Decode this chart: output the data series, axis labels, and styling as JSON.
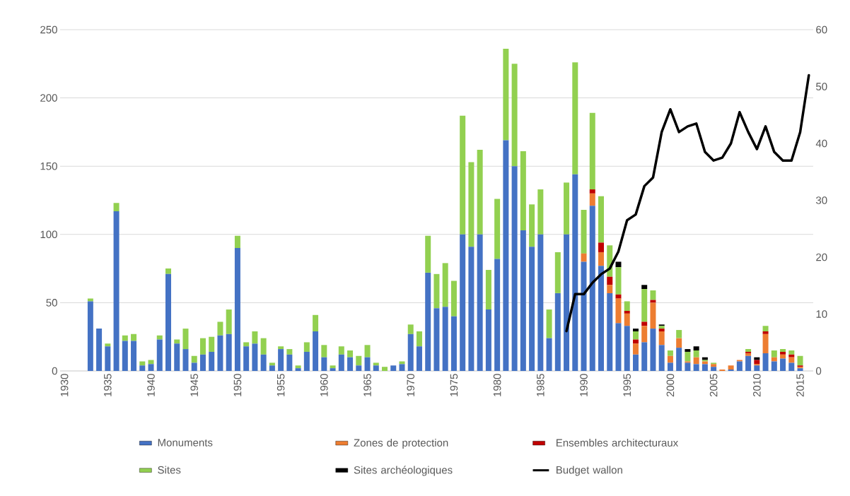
{
  "chart_data": {
    "type": "bar",
    "stacked": true,
    "grid": "y",
    "legend": "bottom",
    "x": [
      1933,
      1934,
      1935,
      1936,
      1937,
      1938,
      1939,
      1940,
      1941,
      1942,
      1943,
      1944,
      1945,
      1946,
      1947,
      1948,
      1949,
      1950,
      1951,
      1952,
      1953,
      1954,
      1955,
      1956,
      1957,
      1958,
      1959,
      1960,
      1961,
      1962,
      1963,
      1964,
      1965,
      1966,
      1967,
      1968,
      1969,
      1970,
      1971,
      1972,
      1973,
      1974,
      1975,
      1976,
      1977,
      1978,
      1979,
      1980,
      1981,
      1982,
      1983,
      1984,
      1985,
      1986,
      1987,
      1988,
      1989,
      1990,
      1991,
      1992,
      1993,
      1994,
      1995,
      1996,
      1997,
      1998,
      1999,
      2000,
      2001,
      2002,
      2003,
      2004,
      2005,
      2006,
      2007,
      2008,
      2009,
      2010,
      2011,
      2012,
      2013,
      2014,
      2015
    ],
    "xlim": [
      1929.5,
      2016.5
    ],
    "xticks": [
      1930,
      1935,
      1940,
      1945,
      1950,
      1955,
      1960,
      1965,
      1970,
      1975,
      1980,
      1985,
      1990,
      1995,
      2000,
      2005,
      2010,
      2015
    ],
    "ylim": [
      0,
      250
    ],
    "yticks": [
      0,
      50,
      100,
      150,
      200,
      250
    ],
    "y2lim": [
      0,
      60
    ],
    "y2ticks": [
      0,
      10,
      20,
      30,
      40,
      50,
      60
    ],
    "series": [
      {
        "name": "Monuments",
        "color": "#4472c4",
        "values": [
          51,
          31,
          18,
          117,
          22,
          22,
          4,
          5,
          23,
          71,
          20,
          16,
          6,
          12,
          14,
          26,
          27,
          90,
          18,
          20,
          12,
          4,
          16,
          12,
          2,
          14,
          29,
          10,
          2,
          12,
          10,
          4,
          10,
          4,
          0,
          4,
          5,
          27,
          18,
          72,
          46,
          47,
          40,
          100,
          91,
          100,
          45,
          82,
          169,
          150,
          103,
          91,
          100,
          24,
          57,
          100,
          144,
          80,
          121,
          77,
          57,
          35,
          33,
          12,
          21,
          31,
          19,
          6,
          17,
          6,
          5,
          5,
          3,
          0,
          1,
          7,
          11,
          4,
          13,
          7,
          9,
          6,
          2
        ]
      },
      {
        "name": "Zones de protection",
        "color": "#ed7d31",
        "values": [
          0,
          0,
          0,
          0,
          0,
          0,
          0,
          0,
          0,
          0,
          0,
          0,
          0,
          0,
          0,
          0,
          0,
          0,
          0,
          0,
          0,
          0,
          0,
          0,
          0,
          0,
          0,
          0,
          0,
          0,
          0,
          0,
          0,
          0,
          0,
          0,
          0,
          0,
          0,
          0,
          0,
          0,
          0,
          0,
          0,
          0,
          0,
          0,
          0,
          0,
          0,
          0,
          0,
          0,
          0,
          0,
          0,
          6,
          9,
          10,
          6,
          18,
          9,
          8,
          12,
          19,
          10,
          5,
          7,
          1,
          5,
          2,
          2,
          1,
          3,
          1,
          2,
          1,
          14,
          3,
          3,
          4,
          1
        ]
      },
      {
        "name": "Ensembles architecturaux",
        "color": "#c00000",
        "values": [
          0,
          0,
          0,
          0,
          0,
          0,
          0,
          0,
          0,
          0,
          0,
          0,
          0,
          0,
          0,
          0,
          0,
          0,
          0,
          0,
          0,
          0,
          0,
          0,
          0,
          0,
          0,
          0,
          0,
          0,
          0,
          0,
          0,
          0,
          0,
          0,
          0,
          0,
          0,
          0,
          0,
          0,
          0,
          0,
          0,
          0,
          0,
          0,
          0,
          0,
          0,
          0,
          0,
          0,
          0,
          0,
          0,
          0,
          3,
          7,
          6,
          3,
          2,
          3,
          3,
          2,
          2,
          0,
          0,
          0,
          0,
          0,
          0,
          0,
          0,
          0,
          1,
          3,
          2,
          0,
          2,
          2,
          1
        ]
      },
      {
        "name": "Sites",
        "color": "#92d050",
        "values": [
          2,
          0,
          2,
          6,
          4,
          5,
          3,
          3,
          3,
          4,
          3,
          15,
          5,
          12,
          11,
          10,
          18,
          9,
          3,
          9,
          12,
          2,
          2,
          4,
          2,
          7,
          12,
          9,
          2,
          6,
          5,
          7,
          9,
          2,
          3,
          0,
          2,
          7,
          11,
          27,
          25,
          32,
          26,
          87,
          62,
          62,
          29,
          44,
          67,
          75,
          58,
          31,
          33,
          21,
          30,
          38,
          82,
          32,
          56,
          34,
          23,
          20,
          7,
          6,
          24,
          7,
          2,
          4,
          6,
          7,
          5,
          1,
          1,
          0,
          0,
          0,
          2,
          0,
          4,
          5,
          2,
          3,
          7
        ]
      },
      {
        "name": "Sites archéologiques",
        "color": "#000000",
        "values": [
          0,
          0,
          0,
          0,
          0,
          0,
          0,
          0,
          0,
          0,
          0,
          0,
          0,
          0,
          0,
          0,
          0,
          0,
          0,
          0,
          0,
          0,
          0,
          0,
          0,
          0,
          0,
          0,
          0,
          0,
          0,
          0,
          0,
          0,
          0,
          0,
          0,
          0,
          0,
          0,
          0,
          0,
          0,
          0,
          0,
          0,
          0,
          0,
          0,
          0,
          0,
          0,
          0,
          0,
          0,
          0,
          0,
          0,
          0,
          0,
          0,
          4,
          0,
          2,
          3,
          0,
          1,
          0,
          0,
          2,
          3,
          2,
          0,
          0,
          0,
          0,
          0,
          2,
          0,
          0,
          0,
          0,
          0
        ]
      },
      {
        "name": "Budget wallon",
        "color": "#000000",
        "type": "line",
        "axis": "y2",
        "x": [
          1988,
          1989,
          1990,
          1991,
          1992,
          1993,
          1994,
          1995,
          1996,
          1997,
          1998,
          1999,
          2000,
          2001,
          2002,
          2003,
          2004,
          2005,
          2006,
          2007,
          2008,
          2009,
          2010,
          2011,
          2012,
          2013,
          2014,
          2015,
          2016
        ],
        "values": [
          7,
          13.5,
          13.5,
          15.5,
          17,
          18,
          21,
          26.5,
          27.5,
          32.5,
          34,
          42,
          46,
          42,
          43,
          43.5,
          38.5,
          37,
          37.5,
          40,
          45.5,
          42,
          39,
          43,
          38.5,
          37,
          37,
          42,
          52
        ]
      }
    ]
  }
}
